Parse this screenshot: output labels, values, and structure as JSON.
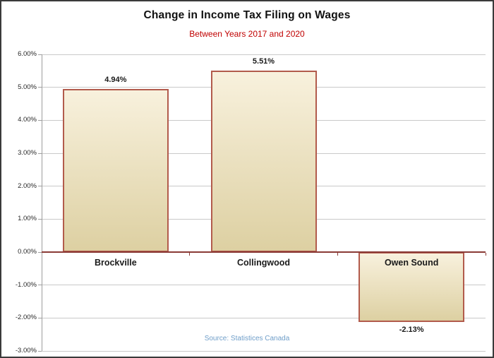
{
  "chart_data": {
    "type": "bar",
    "title": "Change in Income Tax Filing on Wages",
    "subtitle": "Between Years 2017 and 2020",
    "categories": [
      "Brockville",
      "Collingwood",
      "Owen Sound"
    ],
    "values": [
      4.94,
      5.51,
      -2.13
    ],
    "data_labels": [
      "4.94%",
      "5.51%",
      "-2.13%"
    ],
    "y_ticks": [
      6,
      5,
      4,
      3,
      2,
      1,
      0,
      -1,
      -2,
      -3
    ],
    "y_tick_labels": [
      "6.00%",
      "5.00%",
      "4.00%",
      "3.00%",
      "2.00%",
      "1.00%",
      "0.00%",
      "-1.00%",
      "-2.00%",
      "-3.00%"
    ],
    "ylim": [
      -3,
      6
    ],
    "grid": true,
    "legend": false,
    "source": "Source: Statistices Canada",
    "colors": {
      "bar_fill_top": "#f8f1dd",
      "bar_fill_bottom": "#ddd0a2",
      "bar_border": "#b25b4c",
      "zero_line": "#8a3a36",
      "gridline": "#c9c9c9",
      "axis_line": "#9e9e9e",
      "title_text": "#111111",
      "subtitle_text": "#c00000",
      "label_text": "#1a1a1a",
      "source_text": "#6f9ec9",
      "frame_border": "#3a3a3a"
    }
  }
}
